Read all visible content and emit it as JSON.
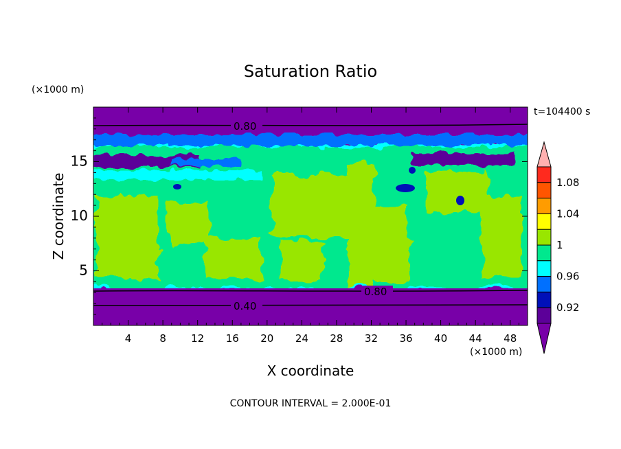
{
  "chart_data": {
    "type": "contour",
    "title": "Saturation Ratio",
    "xlabel": "X coordinate",
    "ylabel": "Z coordinate",
    "x_unit": "(×1000 m)",
    "y_unit": "(×1000 m)",
    "time_label": "t=104400 s",
    "footer": "CONTOUR INTERVAL = 2.000E-01",
    "xlim": [
      0,
      50
    ],
    "ylim": [
      0,
      20
    ],
    "x_ticks": [
      "4",
      "8",
      "12",
      "16",
      "20",
      "24",
      "28",
      "32",
      "36",
      "40",
      "44",
      "48"
    ],
    "y_ticks": [
      "5",
      "10",
      "15"
    ],
    "contour_labels": [
      "0.80",
      "0.80",
      "0.40"
    ],
    "colorbar": {
      "levels": [
        0.9,
        0.92,
        0.94,
        0.96,
        0.98,
        1.0,
        1.02,
        1.04,
        1.06,
        1.08,
        1.1
      ],
      "tick_labels": [
        "0.92",
        "0.96",
        "1",
        "1.04",
        "1.08"
      ],
      "colors": [
        "#ffb0b0",
        "#ff2a1e",
        "#ff5500",
        "#ff9c00",
        "#ffff00",
        "#99e600",
        "#00e88e",
        "#00ffff",
        "#0070ff",
        "#0010b8",
        "#5c0099",
        "#7800a8"
      ]
    },
    "bands": [
      {
        "z_min": 0.0,
        "z_max": 3.4,
        "value": "<0.90"
      },
      {
        "z_min": 3.4,
        "z_max": 14.0,
        "value": "0.98-1.02"
      },
      {
        "z_min": 14.0,
        "z_max": 17.5,
        "value": "0.92-0.98"
      },
      {
        "z_min": 17.5,
        "z_max": 20.0,
        "value": "<0.90"
      }
    ]
  }
}
